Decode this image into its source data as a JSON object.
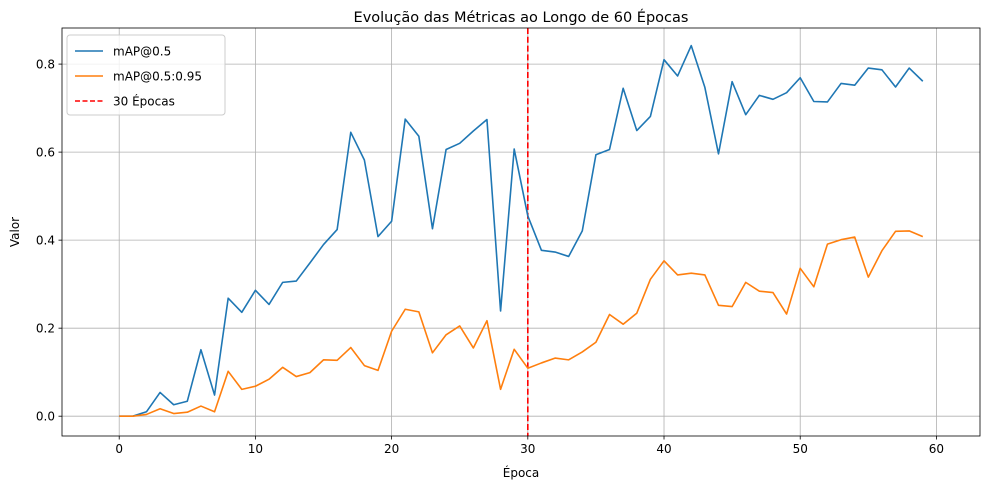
{
  "chart_data": {
    "type": "line",
    "title": "Evolução das Métricas ao Longo de 60 Épocas",
    "xlabel": "Época",
    "ylabel": "Valor",
    "xlim": [
      -4.2,
      63.2
    ],
    "ylim": [
      -0.045,
      0.882
    ],
    "xticks": [
      0,
      10,
      20,
      30,
      40,
      50,
      60
    ],
    "yticks": [
      0.0,
      0.2,
      0.4,
      0.6,
      0.8
    ],
    "ytick_labels": [
      "0.0",
      "0.2",
      "0.4",
      "0.6",
      "0.8"
    ],
    "grid": true,
    "legend_position": "top-left",
    "x": [
      0,
      1,
      2,
      3,
      4,
      5,
      6,
      7,
      8,
      9,
      10,
      11,
      12,
      13,
      14,
      15,
      16,
      17,
      18,
      19,
      20,
      21,
      22,
      23,
      24,
      25,
      26,
      27,
      28,
      29,
      30,
      31,
      32,
      33,
      34,
      35,
      36,
      37,
      38,
      39,
      40,
      41,
      42,
      43,
      44,
      45,
      46,
      47,
      48,
      49,
      50,
      51,
      52,
      53,
      54,
      55,
      56,
      57,
      58,
      59
    ],
    "series": [
      {
        "name": "mAP@0.5",
        "color": "#1f77b4",
        "values": [
          0.0,
          0.0,
          0.01,
          0.054,
          0.026,
          0.034,
          0.151,
          0.048,
          0.268,
          0.236,
          0.286,
          0.254,
          0.304,
          0.307,
          0.348,
          0.39,
          0.424,
          0.645,
          0.582,
          0.408,
          0.443,
          0.675,
          0.636,
          0.426,
          0.606,
          0.62,
          0.648,
          0.674,
          0.239,
          0.607,
          0.455,
          0.377,
          0.373,
          0.363,
          0.421,
          0.594,
          0.606,
          0.745,
          0.649,
          0.681,
          0.81,
          0.773,
          0.842,
          0.747,
          0.596,
          0.76,
          0.685,
          0.729,
          0.72,
          0.735,
          0.769,
          0.715,
          0.714,
          0.756,
          0.752,
          0.791,
          0.787,
          0.748,
          0.791,
          0.761
        ]
      },
      {
        "name": "mAP@0.5:0.95",
        "color": "#ff7f0e",
        "values": [
          0.0,
          0.0,
          0.004,
          0.017,
          0.006,
          0.009,
          0.023,
          0.01,
          0.102,
          0.061,
          0.068,
          0.084,
          0.111,
          0.09,
          0.099,
          0.128,
          0.127,
          0.156,
          0.115,
          0.104,
          0.193,
          0.243,
          0.237,
          0.144,
          0.185,
          0.205,
          0.155,
          0.217,
          0.061,
          0.152,
          0.109,
          0.121,
          0.132,
          0.128,
          0.146,
          0.168,
          0.231,
          0.209,
          0.234,
          0.311,
          0.353,
          0.321,
          0.325,
          0.321,
          0.252,
          0.249,
          0.304,
          0.284,
          0.281,
          0.232,
          0.336,
          0.294,
          0.391,
          0.401,
          0.407,
          0.316,
          0.376,
          0.42,
          0.421,
          0.408
        ]
      }
    ],
    "reference_lines": [
      {
        "name": "30 Épocas",
        "x": 30,
        "color": "#ff0000",
        "style": "dashed"
      }
    ]
  }
}
